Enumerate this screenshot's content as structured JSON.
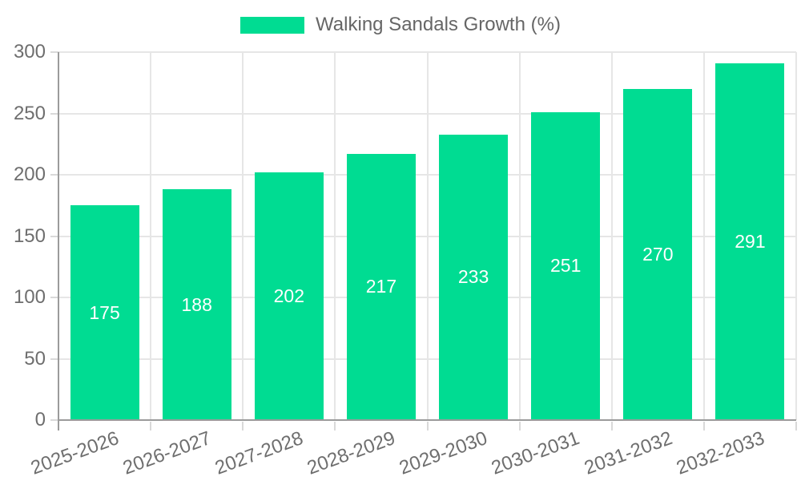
{
  "colors": {
    "background": "#ffffff",
    "bar": "#00dc92",
    "bar_label_text": "#ffffff",
    "axis_line": "#9b9b9b",
    "grid_line": "#e6e6e6",
    "tick_mark": "#d9d9d9",
    "axis_text": "#6e6e6e",
    "legend_text": "#666666"
  },
  "chart_data": {
    "type": "bar",
    "title": "",
    "categories": [
      "2025-2026",
      "2026-2027",
      "2027-2028",
      "2028-2029",
      "2029-2030",
      "2030-2031",
      "2031-2032",
      "2032-2033"
    ],
    "series": [
      {
        "name": "Walking Sandals Growth (%)",
        "values": [
          175,
          188,
          202,
          217,
          233,
          251,
          270,
          291
        ]
      }
    ],
    "xlabel": "",
    "ylabel": "",
    "ylim": [
      0,
      300
    ],
    "yticks": [
      0,
      50,
      100,
      150,
      200,
      250,
      300
    ],
    "grid": true,
    "legend_position": "top",
    "value_labels": "inside-center"
  }
}
